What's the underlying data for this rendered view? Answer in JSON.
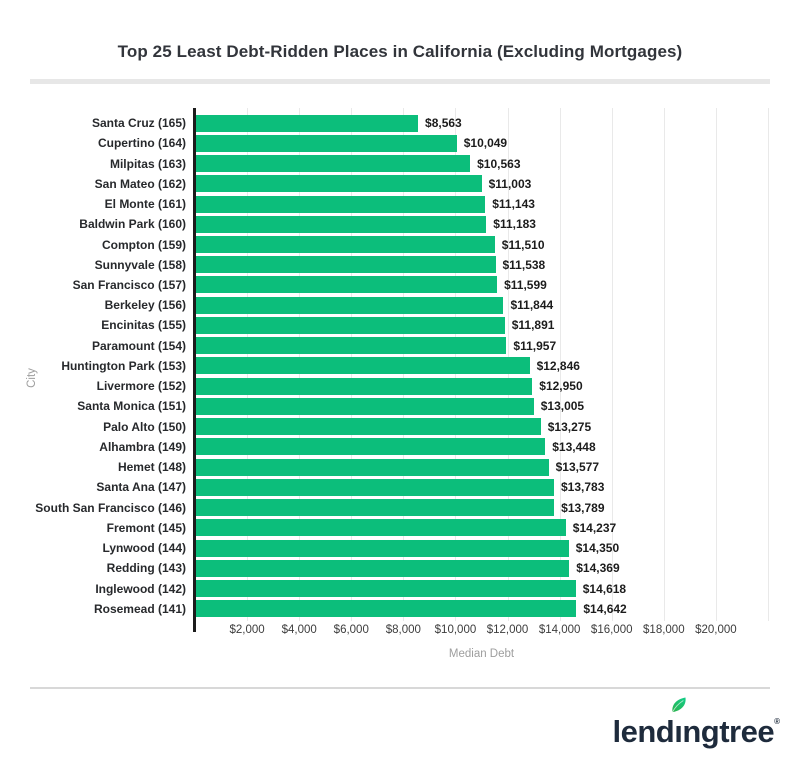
{
  "page": {
    "background": "#ffffff"
  },
  "chart_data": {
    "type": "bar",
    "orientation": "horizontal",
    "title": "Top 25 Least Debt-Ridden Places in California (Excluding Mortgages)",
    "xlabel": "Median Debt",
    "ylabel": "City",
    "xlim": [
      0,
      22000
    ],
    "x_tick_interval": 2000,
    "x_tick_labels": [
      "$2,000",
      "$4,000",
      "$6,000",
      "$8,000",
      "$10,000",
      "$12,000",
      "$14,000",
      "$16,000",
      "$18,000",
      "$20,000"
    ],
    "grid": true,
    "legend": false,
    "bar_color": "#0cbe7b",
    "rows": [
      {
        "city": "Santa Cruz (165)",
        "value": 8563,
        "label": "$8,563"
      },
      {
        "city": "Cupertino (164)",
        "value": 10049,
        "label": "$10,049"
      },
      {
        "city": "Milpitas (163)",
        "value": 10563,
        "label": "$10,563"
      },
      {
        "city": "San Mateo (162)",
        "value": 11003,
        "label": "$11,003"
      },
      {
        "city": "El Monte (161)",
        "value": 11143,
        "label": "$11,143"
      },
      {
        "city": "Baldwin Park (160)",
        "value": 11183,
        "label": "$11,183"
      },
      {
        "city": "Compton (159)",
        "value": 11510,
        "label": "$11,510"
      },
      {
        "city": "Sunnyvale (158)",
        "value": 11538,
        "label": "$11,538"
      },
      {
        "city": "San Francisco (157)",
        "value": 11599,
        "label": "$11,599"
      },
      {
        "city": "Berkeley (156)",
        "value": 11844,
        "label": "$11,844"
      },
      {
        "city": "Encinitas (155)",
        "value": 11891,
        "label": "$11,891"
      },
      {
        "city": "Paramount (154)",
        "value": 11957,
        "label": "$11,957"
      },
      {
        "city": "Huntington Park (153)",
        "value": 12846,
        "label": "$12,846"
      },
      {
        "city": "Livermore (152)",
        "value": 12950,
        "label": "$12,950"
      },
      {
        "city": "Santa Monica (151)",
        "value": 13005,
        "label": "$13,005"
      },
      {
        "city": "Palo Alto (150)",
        "value": 13275,
        "label": "$13,275"
      },
      {
        "city": "Alhambra (149)",
        "value": 13448,
        "label": "$13,448"
      },
      {
        "city": "Hemet (148)",
        "value": 13577,
        "label": "$13,577"
      },
      {
        "city": "Santa Ana (147)",
        "value": 13783,
        "label": "$13,783"
      },
      {
        "city": "South San Francisco (146)",
        "value": 13789,
        "label": "$13,789"
      },
      {
        "city": "Fremont (145)",
        "value": 14237,
        "label": "$14,237"
      },
      {
        "city": "Lynwood (144)",
        "value": 14350,
        "label": "$14,350"
      },
      {
        "city": "Redding (143)",
        "value": 14369,
        "label": "$14,369"
      },
      {
        "city": "Inglewood (142)",
        "value": 14618,
        "label": "$14,618"
      },
      {
        "city": "Rosemead (141)",
        "value": 14642,
        "label": "$14,642"
      }
    ]
  },
  "footer": {
    "logo_before": "lend",
    "logo_i": "ı",
    "logo_after": "ngtree",
    "logo_registered": "®",
    "logo_color": "#1e2b3c",
    "leaf_color_dark": "#2bb24c",
    "leaf_color_light": "#12ce8a"
  }
}
